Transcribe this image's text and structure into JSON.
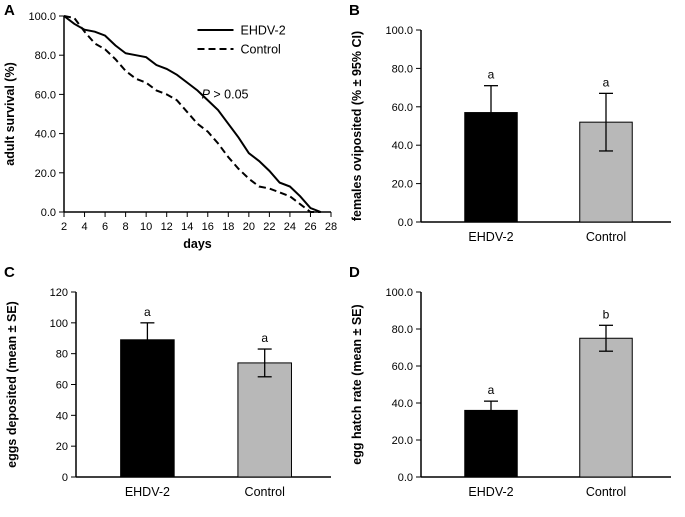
{
  "figure": {
    "panels": [
      {
        "letter": "A"
      },
      {
        "letter": "B"
      },
      {
        "letter": "C"
      },
      {
        "letter": "D"
      }
    ]
  },
  "chart_data": [
    {
      "panel": "A",
      "type": "line",
      "title": "",
      "xlabel": "days",
      "ylabel": "adult survival (%)",
      "xlim": [
        2,
        28
      ],
      "ylim": [
        0,
        100
      ],
      "xticks": [
        2,
        4,
        6,
        8,
        10,
        12,
        14,
        16,
        18,
        20,
        22,
        24,
        26,
        28
      ],
      "yticks": [
        0,
        20,
        40,
        60,
        80,
        100
      ],
      "ytick_labels": [
        "0.0",
        "20.0",
        "40.0",
        "60.0",
        "80.0",
        "100.0"
      ],
      "legend_position": "top-right",
      "annotation": {
        "italic": "P",
        "rest": " > 0.05",
        "at_x": 15.4,
        "at_y": 58
      },
      "x": [
        2,
        3,
        4,
        5,
        6,
        7,
        8,
        9,
        10,
        11,
        12,
        13,
        14,
        15,
        16,
        17,
        18,
        19,
        20,
        21,
        22,
        23,
        24,
        25,
        26,
        27
      ],
      "series": [
        {
          "name": "EHDV-2",
          "line_style": "solid",
          "color": "#000000",
          "values": [
            100,
            96,
            93,
            92,
            90,
            85,
            81,
            80,
            79,
            75,
            73,
            70,
            66,
            62,
            57,
            52,
            45,
            38,
            30,
            26,
            21,
            15,
            13,
            8,
            2,
            0
          ]
        },
        {
          "name": "Control",
          "line_style": "dashed",
          "color": "#000000",
          "values": [
            100,
            99,
            92,
            86,
            83,
            78,
            72,
            68,
            66,
            62,
            60,
            57,
            51,
            45,
            41,
            35,
            28,
            22,
            17,
            13,
            12,
            10,
            8,
            4,
            0,
            0
          ]
        }
      ]
    },
    {
      "panel": "B",
      "type": "bar",
      "ylabel": "females oviposited (% ± 95% CI)",
      "ylim": [
        0,
        100
      ],
      "yticks": [
        0,
        20,
        40,
        60,
        80,
        100
      ],
      "ytick_labels": [
        "0.0",
        "20.0",
        "40.0",
        "60.0",
        "80.0",
        "100.0"
      ],
      "categories": [
        "EHDV-2",
        "Control"
      ],
      "values": [
        57,
        52
      ],
      "errors": [
        14,
        15
      ],
      "sig_letters": [
        "a",
        "a"
      ],
      "bar_colors": [
        "#000000",
        "#b8b8b8"
      ]
    },
    {
      "panel": "C",
      "type": "bar",
      "ylabel": "eggs deposited (mean ± SE)",
      "ylim": [
        0,
        120
      ],
      "yticks": [
        0,
        20,
        40,
        60,
        80,
        100,
        120
      ],
      "ytick_labels": [
        "0",
        "20",
        "40",
        "60",
        "80",
        "100",
        "120"
      ],
      "categories": [
        "EHDV-2",
        "Control"
      ],
      "values": [
        89,
        74
      ],
      "errors": [
        11,
        9
      ],
      "sig_letters": [
        "a",
        "a"
      ],
      "bar_colors": [
        "#000000",
        "#b8b8b8"
      ]
    },
    {
      "panel": "D",
      "type": "bar",
      "ylabel": "egg hatch rate (mean ± SE)",
      "ylim": [
        0,
        100
      ],
      "yticks": [
        0,
        20,
        40,
        60,
        80,
        100
      ],
      "ytick_labels": [
        "0.0",
        "20.0",
        "40.0",
        "60.0",
        "80.0",
        "100.0"
      ],
      "categories": [
        "EHDV-2",
        "Control"
      ],
      "values": [
        36,
        75
      ],
      "errors": [
        5,
        7
      ],
      "sig_letters": [
        "a",
        "b"
      ],
      "bar_colors": [
        "#000000",
        "#b8b8b8"
      ]
    }
  ]
}
